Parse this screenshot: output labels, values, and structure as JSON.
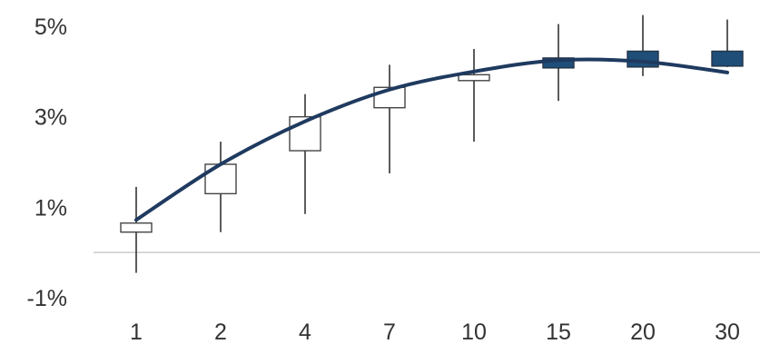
{
  "chart_data": {
    "type": "candlestick",
    "title": "",
    "xlabel": "",
    "ylabel": "",
    "categories": [
      "1",
      "2",
      "4",
      "7",
      "10",
      "15",
      "20",
      "30"
    ],
    "ylim": [
      -1.5,
      5.5
    ],
    "y_ticks": [
      -1,
      1,
      3,
      5
    ],
    "y_tick_labels": [
      "-1%",
      "1%",
      "3%",
      "5%"
    ],
    "baseline_y": 0,
    "grid": false,
    "candles": [
      {
        "category": "1",
        "open": 0.45,
        "close": 0.65,
        "high": 1.45,
        "low": -0.45,
        "filled": false
      },
      {
        "category": "2",
        "open": 1.3,
        "close": 1.95,
        "high": 2.45,
        "low": 0.45,
        "filled": false
      },
      {
        "category": "4",
        "open": 2.25,
        "close": 3.0,
        "high": 3.5,
        "low": 0.85,
        "filled": false
      },
      {
        "category": "7",
        "open": 3.2,
        "close": 3.65,
        "high": 4.15,
        "low": 1.75,
        "filled": false
      },
      {
        "category": "10",
        "open": 3.8,
        "close": 3.93,
        "high": 4.5,
        "low": 2.45,
        "filled": false
      },
      {
        "category": "15",
        "open": 4.08,
        "close": 4.3,
        "high": 5.05,
        "low": 3.35,
        "filled": true
      },
      {
        "category": "20",
        "open": 4.1,
        "close": 4.45,
        "high": 5.25,
        "low": 3.9,
        "filled": true
      },
      {
        "category": "30",
        "open": 4.12,
        "close": 4.45,
        "high": 5.15,
        "low": 4.1,
        "filled": true
      }
    ],
    "curve": [
      {
        "category": "1",
        "y": 0.72
      },
      {
        "category": "2",
        "y": 1.95
      },
      {
        "category": "4",
        "y": 2.9
      },
      {
        "category": "7",
        "y": 3.6
      },
      {
        "category": "10",
        "y": 4.0
      },
      {
        "category": "15",
        "y": 4.25
      },
      {
        "category": "20",
        "y": 4.22
      },
      {
        "category": "30",
        "y": 3.98
      }
    ],
    "colors": {
      "curve": "#1f3a5f",
      "filled_candle": "#1f4e79",
      "hollow_candle_fill": "#ffffff",
      "candle_outline": "#444444",
      "wick": "#333333",
      "baseline": "#cccccc",
      "tick_text": "#333333"
    }
  }
}
